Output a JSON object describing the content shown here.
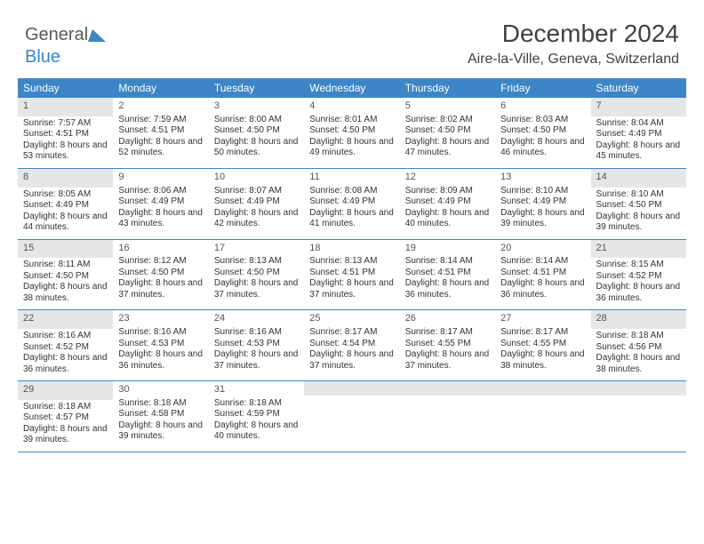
{
  "logo": {
    "word1": "General",
    "word2": "Blue",
    "color1": "#5a5a5a",
    "color2": "#3d85c6"
  },
  "title": "December 2024",
  "location": "Aire-la-Ville, Geneva, Switzerland",
  "header_bg": "#3d85c6",
  "header_text": "#ffffff",
  "shade_bg": "#e6e6e6",
  "rule_color": "#3d85c6",
  "day_headers": [
    "Sunday",
    "Monday",
    "Tuesday",
    "Wednesday",
    "Thursday",
    "Friday",
    "Saturday"
  ],
  "weeks": [
    [
      {
        "n": "1",
        "shade": true,
        "sunrise": "Sunrise: 7:57 AM",
        "sunset": "Sunset: 4:51 PM",
        "day": "Daylight: 8 hours and 53 minutes."
      },
      {
        "n": "2",
        "shade": false,
        "sunrise": "Sunrise: 7:59 AM",
        "sunset": "Sunset: 4:51 PM",
        "day": "Daylight: 8 hours and 52 minutes."
      },
      {
        "n": "3",
        "shade": false,
        "sunrise": "Sunrise: 8:00 AM",
        "sunset": "Sunset: 4:50 PM",
        "day": "Daylight: 8 hours and 50 minutes."
      },
      {
        "n": "4",
        "shade": false,
        "sunrise": "Sunrise: 8:01 AM",
        "sunset": "Sunset: 4:50 PM",
        "day": "Daylight: 8 hours and 49 minutes."
      },
      {
        "n": "5",
        "shade": false,
        "sunrise": "Sunrise: 8:02 AM",
        "sunset": "Sunset: 4:50 PM",
        "day": "Daylight: 8 hours and 47 minutes."
      },
      {
        "n": "6",
        "shade": false,
        "sunrise": "Sunrise: 8:03 AM",
        "sunset": "Sunset: 4:50 PM",
        "day": "Daylight: 8 hours and 46 minutes."
      },
      {
        "n": "7",
        "shade": true,
        "sunrise": "Sunrise: 8:04 AM",
        "sunset": "Sunset: 4:49 PM",
        "day": "Daylight: 8 hours and 45 minutes."
      }
    ],
    [
      {
        "n": "8",
        "shade": true,
        "sunrise": "Sunrise: 8:05 AM",
        "sunset": "Sunset: 4:49 PM",
        "day": "Daylight: 8 hours and 44 minutes."
      },
      {
        "n": "9",
        "shade": false,
        "sunrise": "Sunrise: 8:06 AM",
        "sunset": "Sunset: 4:49 PM",
        "day": "Daylight: 8 hours and 43 minutes."
      },
      {
        "n": "10",
        "shade": false,
        "sunrise": "Sunrise: 8:07 AM",
        "sunset": "Sunset: 4:49 PM",
        "day": "Daylight: 8 hours and 42 minutes."
      },
      {
        "n": "11",
        "shade": false,
        "sunrise": "Sunrise: 8:08 AM",
        "sunset": "Sunset: 4:49 PM",
        "day": "Daylight: 8 hours and 41 minutes."
      },
      {
        "n": "12",
        "shade": false,
        "sunrise": "Sunrise: 8:09 AM",
        "sunset": "Sunset: 4:49 PM",
        "day": "Daylight: 8 hours and 40 minutes."
      },
      {
        "n": "13",
        "shade": false,
        "sunrise": "Sunrise: 8:10 AM",
        "sunset": "Sunset: 4:49 PM",
        "day": "Daylight: 8 hours and 39 minutes."
      },
      {
        "n": "14",
        "shade": true,
        "sunrise": "Sunrise: 8:10 AM",
        "sunset": "Sunset: 4:50 PM",
        "day": "Daylight: 8 hours and 39 minutes."
      }
    ],
    [
      {
        "n": "15",
        "shade": true,
        "sunrise": "Sunrise: 8:11 AM",
        "sunset": "Sunset: 4:50 PM",
        "day": "Daylight: 8 hours and 38 minutes."
      },
      {
        "n": "16",
        "shade": false,
        "sunrise": "Sunrise: 8:12 AM",
        "sunset": "Sunset: 4:50 PM",
        "day": "Daylight: 8 hours and 37 minutes."
      },
      {
        "n": "17",
        "shade": false,
        "sunrise": "Sunrise: 8:13 AM",
        "sunset": "Sunset: 4:50 PM",
        "day": "Daylight: 8 hours and 37 minutes."
      },
      {
        "n": "18",
        "shade": false,
        "sunrise": "Sunrise: 8:13 AM",
        "sunset": "Sunset: 4:51 PM",
        "day": "Daylight: 8 hours and 37 minutes."
      },
      {
        "n": "19",
        "shade": false,
        "sunrise": "Sunrise: 8:14 AM",
        "sunset": "Sunset: 4:51 PM",
        "day": "Daylight: 8 hours and 36 minutes."
      },
      {
        "n": "20",
        "shade": false,
        "sunrise": "Sunrise: 8:14 AM",
        "sunset": "Sunset: 4:51 PM",
        "day": "Daylight: 8 hours and 36 minutes."
      },
      {
        "n": "21",
        "shade": true,
        "sunrise": "Sunrise: 8:15 AM",
        "sunset": "Sunset: 4:52 PM",
        "day": "Daylight: 8 hours and 36 minutes."
      }
    ],
    [
      {
        "n": "22",
        "shade": true,
        "sunrise": "Sunrise: 8:16 AM",
        "sunset": "Sunset: 4:52 PM",
        "day": "Daylight: 8 hours and 36 minutes."
      },
      {
        "n": "23",
        "shade": false,
        "sunrise": "Sunrise: 8:16 AM",
        "sunset": "Sunset: 4:53 PM",
        "day": "Daylight: 8 hours and 36 minutes."
      },
      {
        "n": "24",
        "shade": false,
        "sunrise": "Sunrise: 8:16 AM",
        "sunset": "Sunset: 4:53 PM",
        "day": "Daylight: 8 hours and 37 minutes."
      },
      {
        "n": "25",
        "shade": false,
        "sunrise": "Sunrise: 8:17 AM",
        "sunset": "Sunset: 4:54 PM",
        "day": "Daylight: 8 hours and 37 minutes."
      },
      {
        "n": "26",
        "shade": false,
        "sunrise": "Sunrise: 8:17 AM",
        "sunset": "Sunset: 4:55 PM",
        "day": "Daylight: 8 hours and 37 minutes."
      },
      {
        "n": "27",
        "shade": false,
        "sunrise": "Sunrise: 8:17 AM",
        "sunset": "Sunset: 4:55 PM",
        "day": "Daylight: 8 hours and 38 minutes."
      },
      {
        "n": "28",
        "shade": true,
        "sunrise": "Sunrise: 8:18 AM",
        "sunset": "Sunset: 4:56 PM",
        "day": "Daylight: 8 hours and 38 minutes."
      }
    ],
    [
      {
        "n": "29",
        "shade": true,
        "sunrise": "Sunrise: 8:18 AM",
        "sunset": "Sunset: 4:57 PM",
        "day": "Daylight: 8 hours and 39 minutes."
      },
      {
        "n": "30",
        "shade": false,
        "sunrise": "Sunrise: 8:18 AM",
        "sunset": "Sunset: 4:58 PM",
        "day": "Daylight: 8 hours and 39 minutes."
      },
      {
        "n": "31",
        "shade": false,
        "sunrise": "Sunrise: 8:18 AM",
        "sunset": "Sunset: 4:59 PM",
        "day": "Daylight: 8 hours and 40 minutes."
      },
      {
        "empty": true,
        "shade": true
      },
      {
        "empty": true,
        "shade": true
      },
      {
        "empty": true,
        "shade": true
      },
      {
        "empty": true,
        "shade": true
      }
    ]
  ]
}
